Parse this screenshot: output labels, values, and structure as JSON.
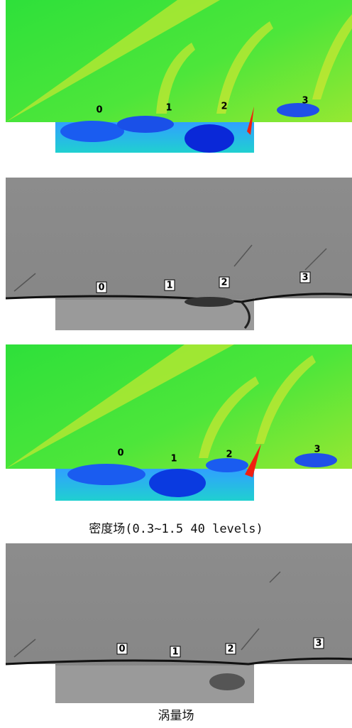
{
  "panels": [
    {
      "labels": [
        "0",
        "1",
        "2",
        "3"
      ]
    },
    {
      "labels": [
        "0",
        "1",
        "2",
        "3"
      ]
    },
    {
      "labels": [
        "0",
        "1",
        "2",
        "3"
      ]
    },
    {
      "labels": [
        "0",
        "1",
        "2",
        "3"
      ]
    }
  ],
  "captions": [
    "密度场(0.3~1.5 40 levels)",
    "涡量场"
  ]
}
